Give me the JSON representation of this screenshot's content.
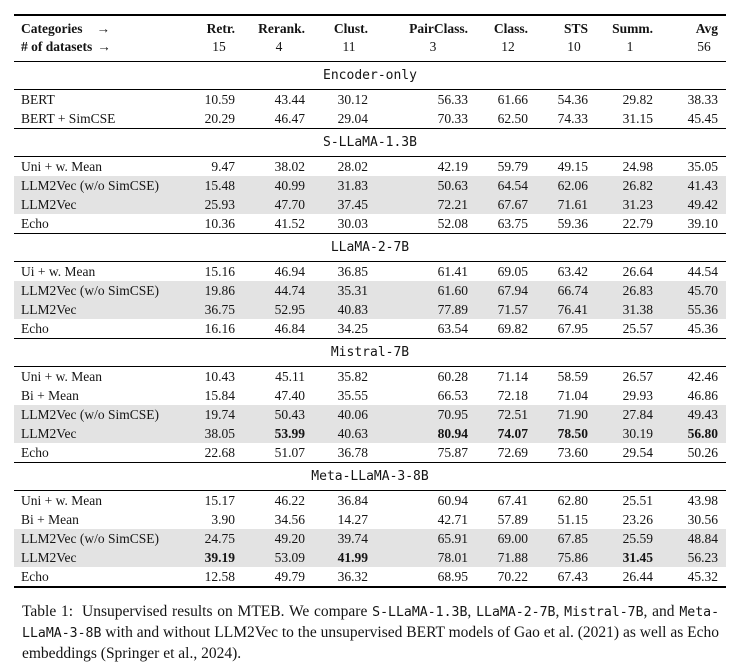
{
  "page": {
    "background_color": "#ffffff",
    "text_color": "#141414",
    "row_shade_color": "#e3e3e3"
  },
  "table": {
    "header": {
      "categories_label": "Categories",
      "categories_arrow": "→",
      "datasets_label": "# of datasets",
      "datasets_arrow": "→",
      "columns": [
        "Retr.",
        "Rerank.",
        "Clust.",
        "PairClass.",
        "Class.",
        "STS",
        "Summ.",
        "Avg"
      ],
      "dataset_counts": [
        "15",
        "4",
        "11",
        "3",
        "12",
        "10",
        "1",
        "56"
      ]
    },
    "sections": [
      {
        "title": "Encoder-only",
        "rows": [
          {
            "label": "BERT",
            "shaded": false,
            "bold": [],
            "values": [
              "10.59",
              "43.44",
              "30.12",
              "56.33",
              "61.66",
              "54.36",
              "29.82",
              "38.33"
            ]
          },
          {
            "label": "BERT + SimCSE",
            "shaded": false,
            "bold": [],
            "values": [
              "20.29",
              "46.47",
              "29.04",
              "70.33",
              "62.50",
              "74.33",
              "31.15",
              "45.45"
            ]
          }
        ]
      },
      {
        "title": "S-LLaMA-1.3B",
        "rows": [
          {
            "label": "Uni + w. Mean",
            "shaded": false,
            "bold": [],
            "values": [
              "9.47",
              "38.02",
              "28.02",
              "42.19",
              "59.79",
              "49.15",
              "24.98",
              "35.05"
            ]
          },
          {
            "label": "LLM2Vec (w/o SimCSE)",
            "shaded": true,
            "bold": [],
            "values": [
              "15.48",
              "40.99",
              "31.83",
              "50.63",
              "64.54",
              "62.06",
              "26.82",
              "41.43"
            ]
          },
          {
            "label": "LLM2Vec",
            "shaded": true,
            "bold": [],
            "values": [
              "25.93",
              "47.70",
              "37.45",
              "72.21",
              "67.67",
              "71.61",
              "31.23",
              "49.42"
            ]
          },
          {
            "label": "Echo",
            "shaded": false,
            "bold": [],
            "values": [
              "10.36",
              "41.52",
              "30.03",
              "52.08",
              "63.75",
              "59.36",
              "22.79",
              "39.10"
            ]
          }
        ]
      },
      {
        "title": "LLaMA-2-7B",
        "rows": [
          {
            "label": "Ui + w. Mean",
            "shaded": false,
            "bold": [],
            "values": [
              "15.16",
              "46.94",
              "36.85",
              "61.41",
              "69.05",
              "63.42",
              "26.64",
              "44.54"
            ]
          },
          {
            "label": "LLM2Vec (w/o SimCSE)",
            "shaded": true,
            "bold": [],
            "values": [
              "19.86",
              "44.74",
              "35.31",
              "61.60",
              "67.94",
              "66.74",
              "26.83",
              "45.70"
            ]
          },
          {
            "label": "LLM2Vec",
            "shaded": true,
            "bold": [],
            "values": [
              "36.75",
              "52.95",
              "40.83",
              "77.89",
              "71.57",
              "76.41",
              "31.38",
              "55.36"
            ]
          },
          {
            "label": "Echo",
            "shaded": false,
            "bold": [],
            "values": [
              "16.16",
              "46.84",
              "34.25",
              "63.54",
              "69.82",
              "67.95",
              "25.57",
              "45.36"
            ]
          }
        ]
      },
      {
        "title": "Mistral-7B",
        "rows": [
          {
            "label": "Uni + w. Mean",
            "shaded": false,
            "bold": [],
            "values": [
              "10.43",
              "45.11",
              "35.82",
              "60.28",
              "71.14",
              "58.59",
              "26.57",
              "42.46"
            ]
          },
          {
            "label": "Bi + Mean",
            "shaded": false,
            "bold": [],
            "values": [
              "15.84",
              "47.40",
              "35.55",
              "66.53",
              "72.18",
              "71.04",
              "29.93",
              "46.86"
            ]
          },
          {
            "label": "LLM2Vec (w/o SimCSE)",
            "shaded": true,
            "bold": [],
            "values": [
              "19.74",
              "50.43",
              "40.06",
              "70.95",
              "72.51",
              "71.90",
              "27.84",
              "49.43"
            ]
          },
          {
            "label": "LLM2Vec",
            "shaded": true,
            "bold": [
              1,
              3,
              4,
              5,
              7
            ],
            "values": [
              "38.05",
              "53.99",
              "40.63",
              "80.94",
              "74.07",
              "78.50",
              "30.19",
              "56.80"
            ]
          },
          {
            "label": "Echo",
            "shaded": false,
            "bold": [],
            "values": [
              "22.68",
              "51.07",
              "36.78",
              "75.87",
              "72.69",
              "73.60",
              "29.54",
              "50.26"
            ]
          }
        ]
      },
      {
        "title": "Meta-LLaMA-3-8B",
        "rows": [
          {
            "label": "Uni + w. Mean",
            "shaded": false,
            "bold": [],
            "values": [
              "15.17",
              "46.22",
              "36.84",
              "60.94",
              "67.41",
              "62.80",
              "25.51",
              "43.98"
            ]
          },
          {
            "label": "Bi + Mean",
            "shaded": false,
            "bold": [],
            "values": [
              "3.90",
              "34.56",
              "14.27",
              "42.71",
              "57.89",
              "51.15",
              "23.26",
              "30.56"
            ]
          },
          {
            "label": "LLM2Vec (w/o SimCSE)",
            "shaded": true,
            "bold": [],
            "values": [
              "24.75",
              "49.20",
              "39.74",
              "65.91",
              "69.00",
              "67.85",
              "25.59",
              "48.84"
            ]
          },
          {
            "label": "LLM2Vec",
            "shaded": true,
            "bold": [
              0,
              2,
              6
            ],
            "values": [
              "39.19",
              "53.09",
              "41.99",
              "78.01",
              "71.88",
              "75.86",
              "31.45",
              "56.23"
            ]
          },
          {
            "label": "Echo",
            "shaded": false,
            "bold": [],
            "values": [
              "12.58",
              "49.79",
              "36.32",
              "68.95",
              "70.22",
              "67.43",
              "26.44",
              "45.32"
            ]
          }
        ]
      }
    ]
  },
  "caption": {
    "label": "Table 1:",
    "segments": [
      {
        "text": "Unsupervised results on MTEB. We compare ",
        "mono": false
      },
      {
        "text": "S-LLaMA-1.3B",
        "mono": true
      },
      {
        "text": ", ",
        "mono": false
      },
      {
        "text": "LLaMA-2-7B",
        "mono": true
      },
      {
        "text": ", ",
        "mono": false
      },
      {
        "text": "Mistral-7B",
        "mono": true
      },
      {
        "text": ", and ",
        "mono": false
      },
      {
        "text": "Meta-LLaMA-3-8B",
        "mono": true
      },
      {
        "text": " with and without LLM2Vec to the unsupervised BERT models of Gao et al. (2021) as well as Echo embeddings (Springer et al., 2024).",
        "mono": false
      }
    ]
  }
}
